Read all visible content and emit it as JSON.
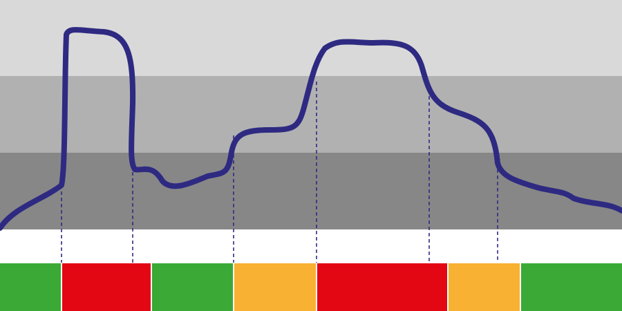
{
  "colors": {
    "band_light": "#d9d9d9",
    "band_mid": "#b1b1b1",
    "band_dark": "#878787",
    "curve": "#2e2a82",
    "green": "#3aa935",
    "red": "#e30613",
    "orange": "#f8b133",
    "background": "#ffffff"
  },
  "diagram": {
    "bands": [
      {
        "level": "high",
        "color": "band_light"
      },
      {
        "level": "medium",
        "color": "band_mid"
      },
      {
        "level": "low",
        "color": "band_dark"
      }
    ],
    "segments": [
      {
        "state": "green"
      },
      {
        "state": "red"
      },
      {
        "state": "green"
      },
      {
        "state": "orange"
      },
      {
        "state": "red"
      },
      {
        "state": "orange"
      },
      {
        "state": "green"
      }
    ],
    "transitions": 6
  }
}
